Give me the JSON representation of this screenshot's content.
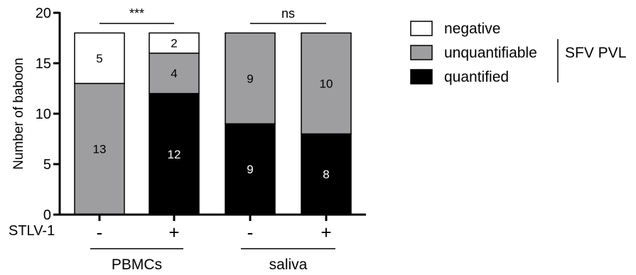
{
  "chart_data": {
    "type": "bar",
    "stacked": true,
    "categories": [
      "-",
      "+",
      "-",
      "+"
    ],
    "category_row_label": "STLV-1",
    "groups": [
      {
        "label": "PBMCs",
        "categories": [
          0,
          1
        ]
      },
      {
        "label": "saliva",
        "categories": [
          2,
          3
        ]
      }
    ],
    "series": [
      {
        "name": "quantified",
        "color": "#000000",
        "label_color": "#ffffff",
        "values": [
          0,
          12,
          9,
          8
        ]
      },
      {
        "name": "unquantifiable",
        "color": "#9e9ea0",
        "label_color": "#000000",
        "values": [
          13,
          4,
          9,
          10
        ]
      },
      {
        "name": "negative",
        "color": "#ffffff",
        "label_color": "#000000",
        "values": [
          5,
          2,
          0,
          0
        ]
      }
    ],
    "ylabel": "Number of baboon",
    "ylim": [
      0,
      20
    ],
    "yticks": [
      0,
      5,
      10,
      15,
      20
    ],
    "legend_group_label": "SFV PVL",
    "legend_position": "right",
    "significance": [
      {
        "label": "***",
        "categories": [
          0,
          1
        ]
      },
      {
        "label": "ns",
        "categories": [
          2,
          3
        ]
      }
    ],
    "grid": false
  }
}
